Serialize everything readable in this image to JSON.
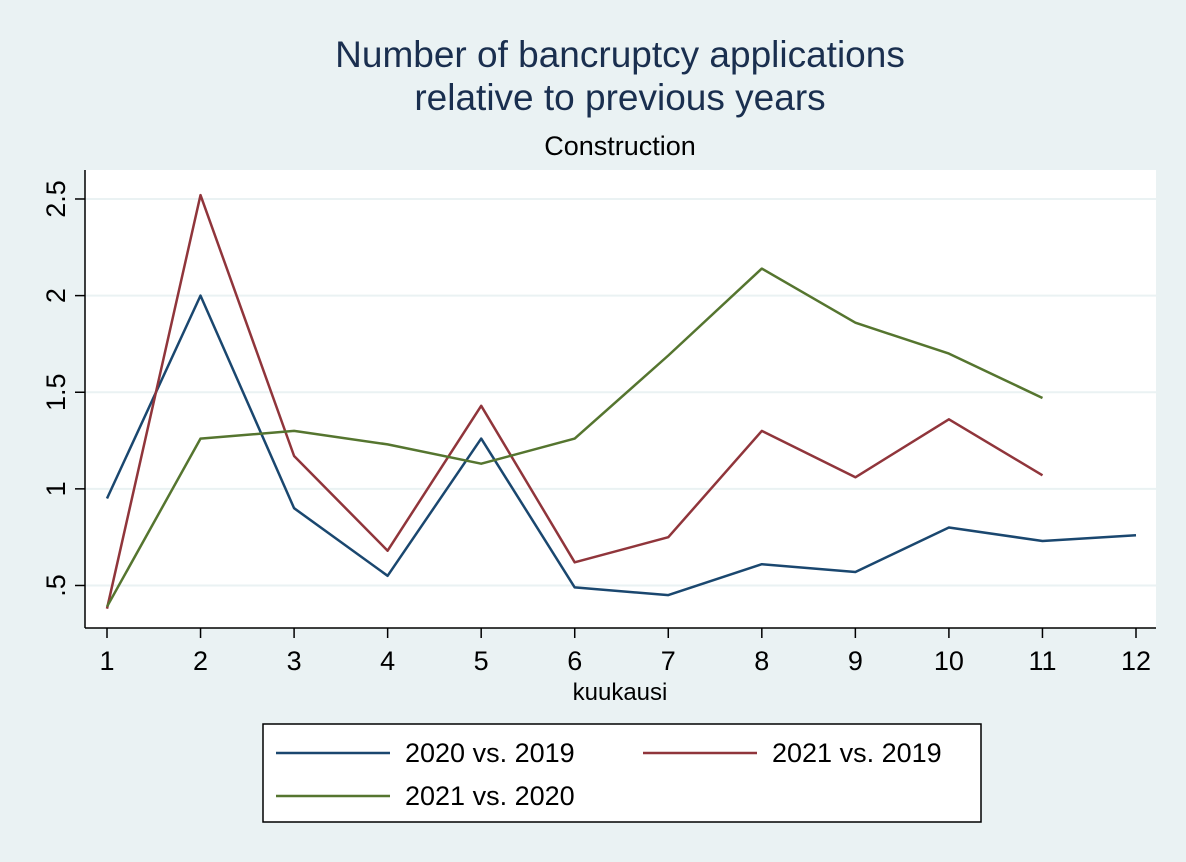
{
  "chart_data": {
    "type": "line",
    "title_line1": "Number of bancruptcy applications",
    "title_line2": "relative to previous years",
    "subtitle": "Construction",
    "xlabel": "kuukausi",
    "ylabel": "",
    "x": [
      1,
      2,
      3,
      4,
      5,
      6,
      7,
      8,
      9,
      10,
      11,
      12
    ],
    "x_ticks": [
      "1",
      "2",
      "3",
      "4",
      "5",
      "6",
      "7",
      "8",
      "9",
      "10",
      "11",
      "12"
    ],
    "y_ticks": [
      {
        "value": 0.5,
        "label": ".5"
      },
      {
        "value": 1,
        "label": "1"
      },
      {
        "value": 1.5,
        "label": "1.5"
      },
      {
        "value": 2,
        "label": "2"
      },
      {
        "value": 2.5,
        "label": "2.5"
      }
    ],
    "ylim": [
      0.28,
      2.65
    ],
    "xlim": [
      1,
      12
    ],
    "grid": true,
    "legend_position": "bottom",
    "series": [
      {
        "name": "2020 vs. 2019",
        "color": "#1a476f",
        "values": [
          0.95,
          2.0,
          0.9,
          0.55,
          1.26,
          0.49,
          0.45,
          0.61,
          0.57,
          0.8,
          0.73,
          0.76
        ]
      },
      {
        "name": "2021 vs. 2019",
        "color": "#90353b",
        "values": [
          0.38,
          2.52,
          1.17,
          0.68,
          1.43,
          0.62,
          0.75,
          1.3,
          1.06,
          1.36,
          1.07,
          null
        ]
      },
      {
        "name": "2021 vs. 2020",
        "color": "#55752f",
        "values": [
          0.39,
          1.26,
          1.3,
          1.23,
          1.13,
          1.26,
          1.69,
          2.14,
          1.86,
          1.7,
          1.47,
          null
        ]
      }
    ]
  }
}
